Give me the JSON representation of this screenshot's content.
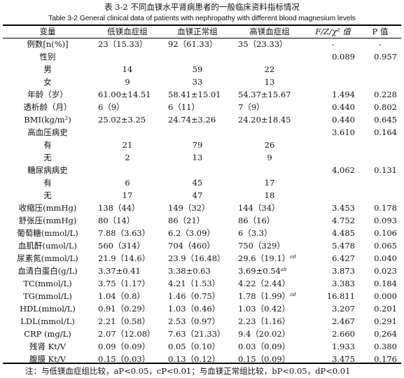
{
  "caption_cn": "表 3-2  不同血镁水平肾病患者的一般临床资料指标情况",
  "caption_en": "Table 3-2 General clinical data of patients with nephropathy with different blood magnesium levels",
  "headers": {
    "variable": "变量",
    "low": "低镁血症组",
    "normal": "血镁正常组",
    "high": "高镁血症组",
    "stat": "F/Z/χ² 值",
    "p": "P 值"
  },
  "rows": [
    {
      "var": "例数[n(%)]",
      "low": "23（15.33）",
      "normal": "92（61.33）",
      "high": "35（23.33）",
      "stat": "-",
      "p": "-",
      "low_sup": "",
      "normal_sup": "",
      "high_sup": ""
    },
    {
      "var": "性别",
      "low": "",
      "normal": "",
      "high": "",
      "stat": "0.089",
      "p": "0.957",
      "low_sup": "",
      "normal_sup": "",
      "high_sup": ""
    },
    {
      "var": "男",
      "low": "14",
      "normal": "59",
      "high": "22",
      "stat": "",
      "p": "",
      "low_sup": "",
      "normal_sup": "",
      "high_sup": ""
    },
    {
      "var": "女",
      "low": "9",
      "normal": "33",
      "high": "13",
      "stat": "",
      "p": "",
      "low_sup": "",
      "normal_sup": "",
      "high_sup": ""
    },
    {
      "var": "年龄（岁）",
      "low": "61.00±14.51",
      "normal": "58.41±15.01",
      "high": "54.37±15.67",
      "stat": "1.494",
      "p": "0.228",
      "low_sup": "",
      "normal_sup": "",
      "high_sup": ""
    },
    {
      "var": "透析龄（月）",
      "low": "6（9）",
      "normal": "6（11）",
      "high": "7（9）",
      "stat": "0.440",
      "p": "0.802",
      "low_sup": "",
      "normal_sup": "",
      "high_sup": ""
    },
    {
      "var": "BMI(kg/m²)",
      "low": "25.02±3.25",
      "normal": "24.74±3.26",
      "high": "24.20±18.45",
      "stat": "0.440",
      "p": "0.645",
      "low_sup": "",
      "normal_sup": "",
      "high_sup": ""
    },
    {
      "var": "高血压病史",
      "low": "",
      "normal": "",
      "high": "",
      "stat": "3.610",
      "p": "0.164",
      "low_sup": "",
      "normal_sup": "",
      "high_sup": ""
    },
    {
      "var": "有",
      "low": "21",
      "normal": "79",
      "high": "26",
      "stat": "",
      "p": "",
      "low_sup": "",
      "normal_sup": "",
      "high_sup": ""
    },
    {
      "var": "无",
      "low": "2",
      "normal": "13",
      "high": "9",
      "stat": "",
      "p": "",
      "low_sup": "",
      "normal_sup": "",
      "high_sup": ""
    },
    {
      "var": "糖尿病病史",
      "low": "",
      "normal": "",
      "high": "",
      "stat": "4.062",
      "p": "0.131",
      "low_sup": "",
      "normal_sup": "",
      "high_sup": ""
    },
    {
      "var": "有",
      "low": "6",
      "normal": "45",
      "high": "17",
      "stat": "",
      "p": "",
      "low_sup": "",
      "normal_sup": "",
      "high_sup": ""
    },
    {
      "var": "无",
      "low": "17",
      "normal": "47",
      "high": "18",
      "stat": "",
      "p": "",
      "low_sup": "",
      "normal_sup": "",
      "high_sup": ""
    },
    {
      "var": "收缩压(mmHg)",
      "low": "138（44）",
      "normal": "149（32）",
      "high": "144（34）",
      "stat": "3.453",
      "p": "0.178",
      "low_sup": "",
      "normal_sup": "",
      "high_sup": ""
    },
    {
      "var": "舒张压(mmHg)",
      "low": "80（14）",
      "normal": "86（21）",
      "high": "86（16）",
      "stat": "4.752",
      "p": "0.093",
      "low_sup": "",
      "normal_sup": "",
      "high_sup": ""
    },
    {
      "var": "葡萄糖(mmol/L)",
      "low": "7.88（3.63）",
      "normal": "6.2（3.09）",
      "high": "6（3.3）",
      "stat": "4.485",
      "p": "0.106",
      "low_sup": "",
      "normal_sup": "",
      "high_sup": ""
    },
    {
      "var": "血肌酐(umol/L)",
      "low": "560（314）",
      "normal": "704（460）",
      "high": "750（329）",
      "stat": "5.478",
      "p": "0.065",
      "low_sup": "",
      "normal_sup": "",
      "high_sup": ""
    },
    {
      "var": "尿素氮(mmol/L)",
      "low": "21.9（14.6）",
      "normal": "23.9（16.48）",
      "high": "29.6（19.1）",
      "stat": "6.427",
      "p": "0.040",
      "low_sup": "",
      "normal_sup": "",
      "high_sup": "cd"
    },
    {
      "var": "血清白蛋白(g/L)",
      "low": "3.37±0.41",
      "normal": "3.38±0.63",
      "high": "3.69±0.54",
      "stat": "3.873",
      "p": "0.023",
      "low_sup": "",
      "normal_sup": "",
      "high_sup": "ab"
    },
    {
      "var": "TC(mmol/L)",
      "low": "3.75（1.17）",
      "normal": "4.21（1.53）",
      "high": "4.22（2.44）",
      "stat": "3.383",
      "p": "0.184",
      "low_sup": "",
      "normal_sup": "",
      "high_sup": ""
    },
    {
      "var": "TG(mmol/L)",
      "low": "1.04（0.8）",
      "normal": "1.46（0.75）",
      "high": "1.78（1.99）",
      "stat": "16.811",
      "p": "0.000",
      "low_sup": "",
      "normal_sup": "",
      "high_sup": "cd"
    },
    {
      "var": "HDL(mmol/L)",
      "low": "0.91（0.29）",
      "normal": "1.03（0.46）",
      "high": "1.03（0.42）",
      "stat": "3.207",
      "p": "0.201",
      "low_sup": "",
      "normal_sup": "",
      "high_sup": ""
    },
    {
      "var": "LDL(mmol/L)",
      "low": "2.21（0.58）",
      "normal": "2.53（0.97）",
      "high": "2.23（1.16）",
      "stat": "2.467",
      "p": "0.291",
      "low_sup": "",
      "normal_sup": "",
      "high_sup": ""
    },
    {
      "var": "CRP (mg/L)",
      "low": "2.07（12.08）",
      "normal": "7.63（21.33）",
      "high": "9.4（20.02）",
      "stat": "2.660",
      "p": "0.264",
      "low_sup": "",
      "normal_sup": "",
      "high_sup": ""
    },
    {
      "var": "残肾 Kt/V",
      "low": "0.09（0.09）",
      "normal": "0.05（0.10）",
      "high": "0.03（0.09）",
      "stat": "1.933",
      "p": "0.380",
      "low_sup": "",
      "normal_sup": "",
      "high_sup": ""
    },
    {
      "var": "腹膜 Kt/V",
      "low": "0.15（0.03）",
      "normal": "0.13（0.12）",
      "high": "0.15（0.09）",
      "stat": "3.475",
      "p": "0.176",
      "low_sup": "",
      "normal_sup": "",
      "high_sup": ""
    }
  ],
  "note": "注：与低镁血症组比较，aP<0.05，cP<0.01；与血镁正常组比较，bP<0.05，dP<0.01"
}
